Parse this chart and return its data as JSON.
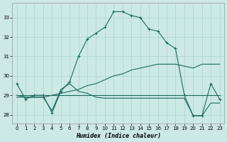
{
  "xlabel": "Humidex (Indice chaleur)",
  "bg_color": "#cce9e6",
  "grid_color": "#aad4d0",
  "line_color": "#1a6b5e",
  "xlim": [
    -0.5,
    23.5
  ],
  "ylim": [
    27.55,
    33.75
  ],
  "xticks": [
    0,
    1,
    2,
    3,
    4,
    5,
    6,
    7,
    8,
    9,
    10,
    11,
    12,
    13,
    14,
    15,
    16,
    17,
    18,
    19,
    20,
    21,
    22,
    23
  ],
  "yticks": [
    28,
    29,
    30,
    31,
    32,
    33
  ],
  "line_main_x": [
    0,
    1,
    2,
    3,
    4,
    5,
    6,
    7,
    8,
    9,
    10,
    11,
    12,
    13,
    14,
    15,
    16,
    17,
    18,
    19,
    20,
    21,
    22,
    23
  ],
  "line_main_y": [
    29.6,
    28.8,
    29.0,
    29.0,
    28.1,
    29.2,
    29.7,
    31.0,
    31.9,
    32.2,
    32.5,
    33.3,
    33.3,
    33.1,
    33.0,
    32.4,
    32.3,
    31.7,
    31.4,
    29.0,
    27.95,
    27.95,
    29.6,
    28.8
  ],
  "line_flat_x": [
    0,
    1,
    2,
    3,
    4,
    5,
    6,
    7,
    8,
    9,
    10,
    11,
    12,
    13,
    14,
    15,
    16,
    17,
    18,
    19,
    20,
    21,
    22,
    23
  ],
  "line_flat_y": [
    29.0,
    29.0,
    29.0,
    29.0,
    29.0,
    29.0,
    29.0,
    29.0,
    29.0,
    29.0,
    29.0,
    29.0,
    29.0,
    29.0,
    29.0,
    29.0,
    29.0,
    29.0,
    29.0,
    29.0,
    29.0,
    29.0,
    29.0,
    29.0
  ],
  "line_diag_x": [
    0,
    1,
    2,
    3,
    4,
    5,
    6,
    7,
    8,
    9,
    10,
    11,
    12,
    13,
    14,
    15,
    16,
    17,
    18,
    19,
    20,
    21,
    22,
    23
  ],
  "line_diag_y": [
    28.9,
    28.9,
    28.9,
    28.9,
    29.0,
    29.1,
    29.2,
    29.3,
    29.5,
    29.6,
    29.8,
    30.0,
    30.1,
    30.3,
    30.4,
    30.5,
    30.6,
    30.6,
    30.6,
    30.5,
    30.4,
    30.6,
    30.6,
    30.6
  ],
  "line_low_x": [
    0,
    1,
    2,
    3,
    4,
    5,
    6,
    7,
    8,
    9,
    10,
    11,
    12,
    13,
    14,
    15,
    16,
    17,
    18,
    19,
    20,
    21,
    22,
    23
  ],
  "line_low_y": [
    29.0,
    28.9,
    28.9,
    28.9,
    28.2,
    29.3,
    29.6,
    29.2,
    29.1,
    28.9,
    28.85,
    28.85,
    28.85,
    28.85,
    28.85,
    28.85,
    28.85,
    28.85,
    28.85,
    28.85,
    27.95,
    27.95,
    28.6,
    28.6
  ]
}
